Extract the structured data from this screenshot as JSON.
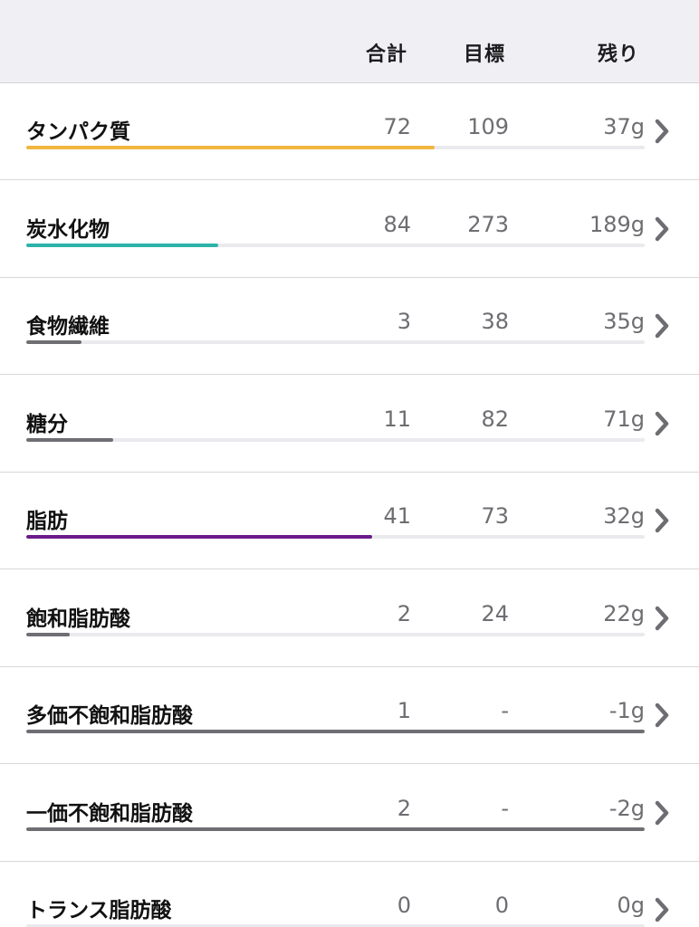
{
  "header": {
    "total_label": "合計",
    "goal_label": "目標",
    "remaining_label": "残り"
  },
  "rows": [
    {
      "name": "タンパク質",
      "total": "72",
      "goal": "109",
      "remaining": "37g",
      "progress": 0.66,
      "bar_color": "#f2b63e"
    },
    {
      "name": "炭水化物",
      "total": "84",
      "goal": "273",
      "remaining": "189g",
      "progress": 0.31,
      "bar_color": "#2bb3a8"
    },
    {
      "name": "食物繊維",
      "total": "3",
      "goal": "38",
      "remaining": "35g",
      "progress": 0.09,
      "bar_color": "#6e6e73"
    },
    {
      "name": "糖分",
      "total": "11",
      "goal": "82",
      "remaining": "71g",
      "progress": 0.14,
      "bar_color": "#6e6e73"
    },
    {
      "name": "脂肪",
      "total": "41",
      "goal": "73",
      "remaining": "32g",
      "progress": 0.56,
      "bar_color": "#6a1b8a"
    },
    {
      "name": "飽和脂肪酸",
      "total": "2",
      "goal": "24",
      "remaining": "22g",
      "progress": 0.07,
      "bar_color": "#6e6e73"
    },
    {
      "name": "多価不飽和脂肪酸",
      "total": "1",
      "goal": "-",
      "remaining": "-1g",
      "progress": 1.0,
      "bar_color": "#6e6e73"
    },
    {
      "name": "一価不飽和脂肪酸",
      "total": "2",
      "goal": "-",
      "remaining": "-2g",
      "progress": 1.0,
      "bar_color": "#6e6e73"
    },
    {
      "name": "トランス脂肪酸",
      "total": "0",
      "goal": "0",
      "remaining": "0g",
      "progress": 0,
      "bar_color": "#6e6e73"
    }
  ],
  "icons": {
    "row_chevron": "chevron-right-icon"
  }
}
